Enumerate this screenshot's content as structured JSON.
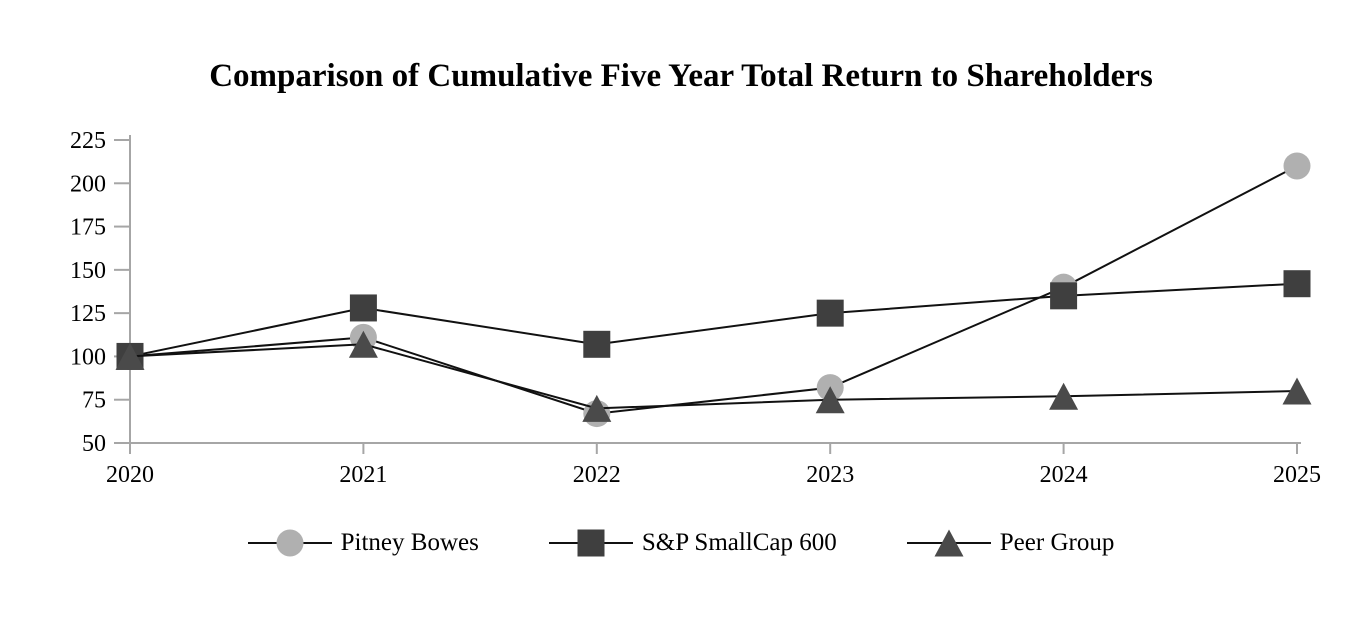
{
  "title": "Comparison of Cumulative Five Year Total Return to Shareholders",
  "chart_data": {
    "type": "line",
    "x_labels": [
      "2020",
      "2021",
      "2022",
      "2023",
      "2024",
      "2025"
    ],
    "series": [
      {
        "name": "Pitney Bowes",
        "marker": "circle",
        "marker_color": "#b0b0b0",
        "values": [
          100,
          111,
          67,
          82,
          140,
          210
        ]
      },
      {
        "name": "S&P SmallCap 600",
        "marker": "square",
        "marker_color": "#3f3f3f",
        "values": [
          100,
          128,
          107,
          125,
          135,
          142
        ]
      },
      {
        "name": "Peer Group",
        "marker": "triangle",
        "marker_color": "#4a4a4a",
        "values": [
          100,
          107,
          70,
          75,
          77,
          80
        ]
      }
    ],
    "ylim": [
      50,
      225
    ],
    "yticks": [
      50,
      75,
      100,
      125,
      150,
      175,
      200,
      225
    ],
    "line_color": "#111111",
    "axis_color": "#a6a6a6",
    "text_color": "#000000",
    "grid": false,
    "legend_position": "bottom"
  }
}
